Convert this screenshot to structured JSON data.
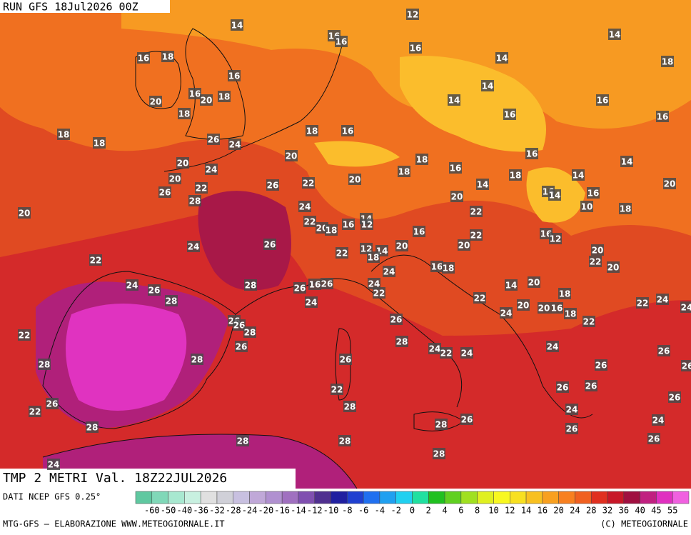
{
  "header": {
    "run": "RUN GFS 18Jul2026 00Z",
    "title": "TMP 2 METRI Val. 18Z22JUL2026"
  },
  "footer": {
    "source": "DATI NCEP GFS 0.25°",
    "credit": "MTG-GFS — ELABORAZIONE WWW.METEOGIORNALE.IT",
    "copyright": "(C) METEOGIORNALE"
  },
  "legend": {
    "ticks": [
      -60,
      -50,
      -40,
      -36,
      -32,
      -28,
      -24,
      -20,
      -16,
      -14,
      -12,
      -10,
      -8,
      -6,
      -4,
      -2,
      0,
      2,
      4,
      6,
      8,
      10,
      12,
      14,
      16,
      20,
      24,
      28,
      32,
      36,
      40,
      45,
      55
    ],
    "colors": [
      "#5fc8a0",
      "#80d8b8",
      "#a8e8d0",
      "#c8f0e0",
      "#e0e0e0",
      "#d0d0d8",
      "#c8c0e0",
      "#c0a8d8",
      "#b090d0",
      "#a070c0",
      "#8050b0",
      "#503090",
      "#2020a0",
      "#2040d0",
      "#2070f0",
      "#20a0f0",
      "#20d0f0",
      "#20e0a0",
      "#20c020",
      "#60d020",
      "#a0e020",
      "#e0f020",
      "#f8f820",
      "#f8e020",
      "#f8c020",
      "#f8a020",
      "#f88020",
      "#f06020",
      "#e03020",
      "#c81828",
      "#a01040",
      "#c02080",
      "#e030c0",
      "#f060e0"
    ]
  },
  "labels": [
    14,
    12,
    16,
    16,
    16,
    14,
    16,
    18,
    14,
    18,
    16,
    14,
    14,
    16,
    20,
    20,
    18,
    16,
    18,
    16,
    16,
    18,
    18,
    16,
    18,
    26,
    24,
    20,
    16,
    18,
    14,
    20,
    24,
    18,
    16,
    18,
    14,
    20,
    22,
    20,
    26,
    22,
    26,
    14,
    16,
    14,
    16,
    20,
    28,
    20,
    10,
    18,
    20,
    24,
    22,
    22,
    20,
    18,
    16,
    14,
    12,
    16,
    16,
    12,
    22,
    24,
    26,
    12,
    22,
    14,
    20,
    20,
    20,
    18,
    22,
    22,
    16,
    18,
    24,
    20,
    24,
    26,
    28,
    26,
    16,
    26,
    24,
    14,
    20,
    18,
    28,
    24,
    22,
    22,
    22,
    24,
    24,
    20,
    24,
    20,
    16,
    18,
    26,
    26,
    28,
    26,
    22,
    22,
    28,
    26,
    24,
    24,
    22,
    24,
    26,
    26,
    28,
    28,
    26,
    26,
    22,
    26,
    26,
    26,
    26,
    22,
    28,
    24,
    26,
    24,
    28,
    28,
    26,
    28,
    28,
    26,
    28,
    24
  ]
}
